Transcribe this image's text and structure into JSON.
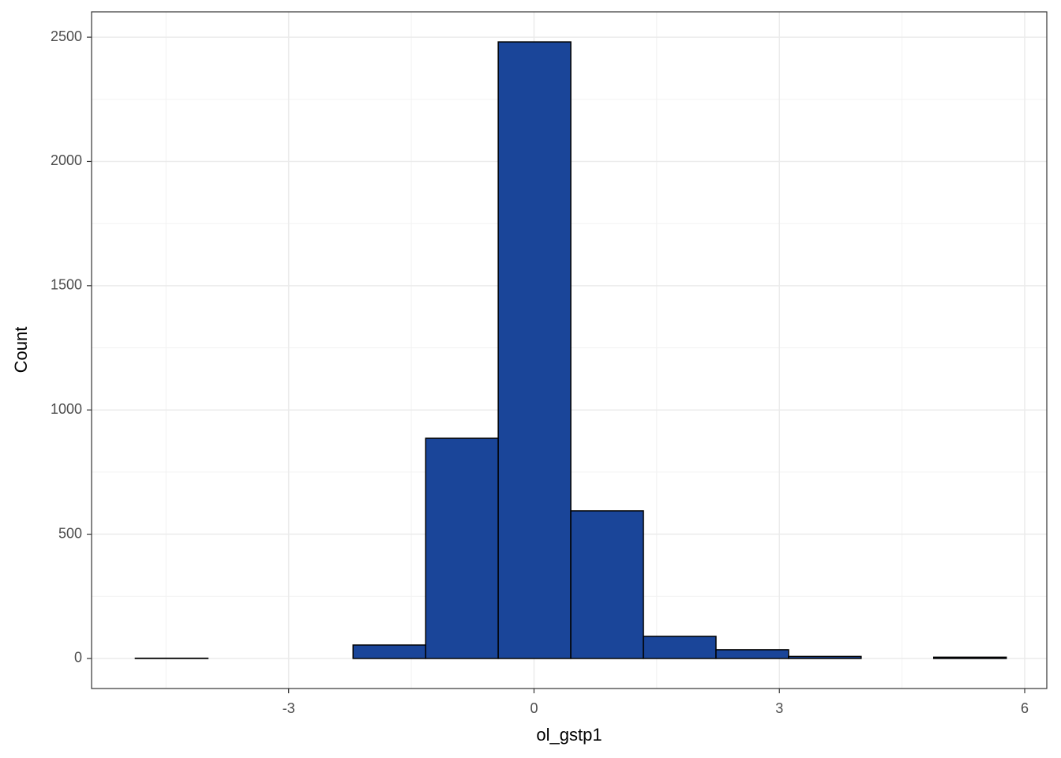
{
  "chart_data": {
    "type": "histogram",
    "x_label": "ol_gstp1",
    "y_label": "Count",
    "bins": [
      -4.875,
      -3.9875,
      -3.1,
      -2.2125,
      -1.325,
      -0.4375,
      0.45,
      1.3375,
      2.225,
      3.1125,
      4.0,
      4.8875,
      5.775
    ],
    "values": [
      1,
      0,
      0,
      54,
      886,
      2481,
      594,
      89,
      35,
      8,
      0,
      5
    ],
    "color": "#1a4599",
    "edge_color": "#000000",
    "xlim": [
      -5.41,
      6.27
    ],
    "xticks": [
      -3,
      0,
      3,
      6
    ],
    "ylim": [
      -121,
      2602
    ],
    "yticks": [
      0,
      500,
      1000,
      1500,
      2000,
      2500
    ],
    "grid": true
  }
}
